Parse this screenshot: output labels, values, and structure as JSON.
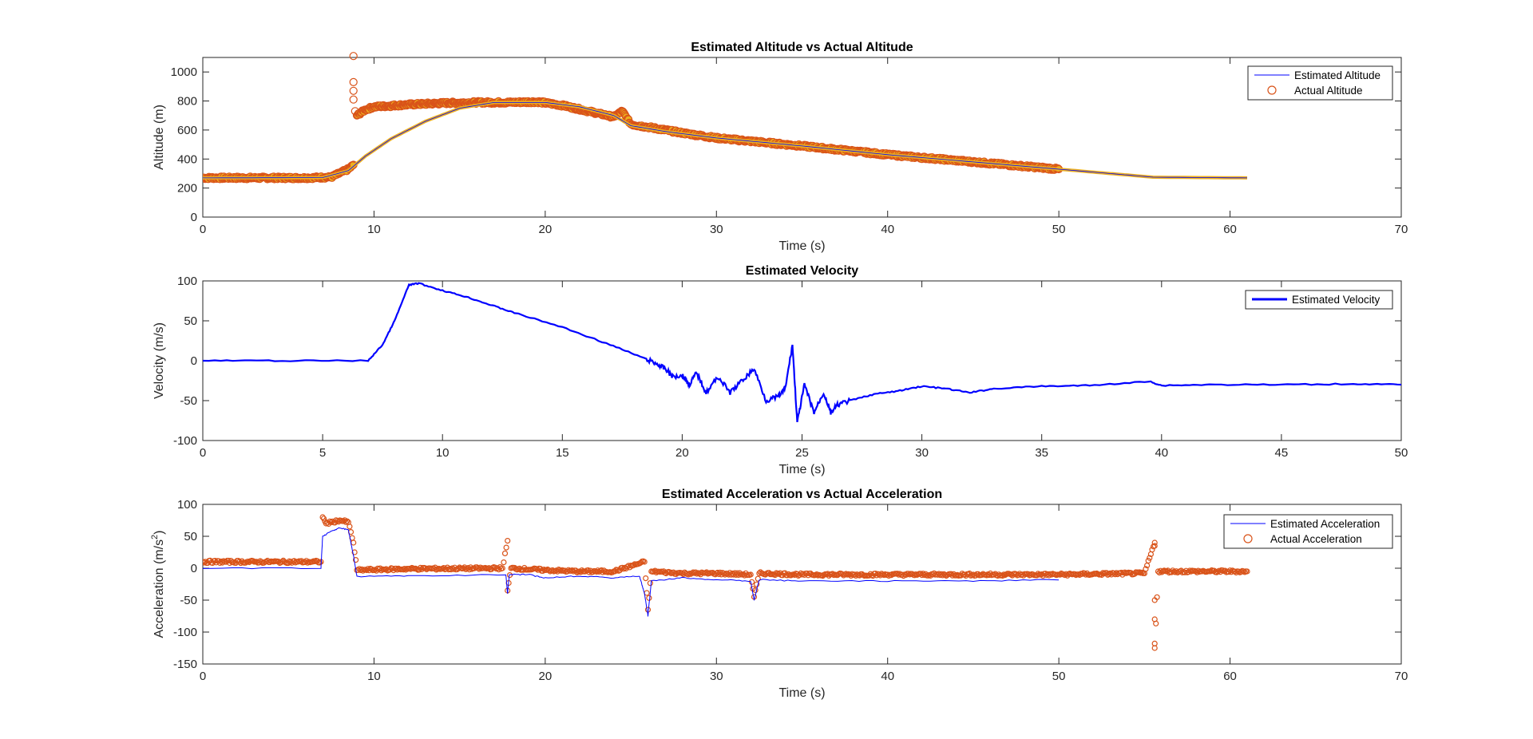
{
  "chart_data": [
    {
      "type": "line",
      "title": "Estimated Altitude vs Actual Altitude",
      "xlabel": "Time (s)",
      "ylabel": "Altitude (m)",
      "xlim": [
        0,
        70
      ],
      "ylim": [
        0,
        1100
      ],
      "xticks": [
        "0",
        "10",
        "20",
        "30",
        "40",
        "50",
        "60",
        "70"
      ],
      "yticks": [
        "0",
        "200",
        "400",
        "600",
        "800",
        "1000"
      ],
      "grid": false,
      "legend_position": "top-right",
      "series": [
        {
          "name": "Estimated Altitude",
          "style": "line",
          "color": "#0000ff",
          "points": [
            [
              0,
              270
            ],
            [
              7,
              272
            ],
            [
              8.5,
              320
            ],
            [
              9.5,
              420
            ],
            [
              11,
              540
            ],
            [
              13,
              660
            ],
            [
              15,
              750
            ],
            [
              17,
              790
            ],
            [
              20,
              790
            ],
            [
              22,
              760
            ],
            [
              24,
              700
            ],
            [
              25,
              630
            ],
            [
              27,
              590
            ],
            [
              30,
              545
            ],
            [
              35,
              490
            ],
            [
              40,
              430
            ],
            [
              45,
              380
            ],
            [
              50,
              330
            ],
            [
              53,
              300
            ],
            [
              55.5,
              275
            ],
            [
              61,
              270
            ]
          ]
        },
        {
          "name": "Actual Altitude",
          "style": "markers",
          "color": "#d95319",
          "points": [
            [
              0,
              270
            ],
            [
              3,
              270
            ],
            [
              6,
              270
            ],
            [
              7.5,
              275
            ],
            [
              8.5,
              330
            ],
            [
              8.8,
              360
            ],
            [
              8.8,
              1110
            ],
            [
              8.8,
              930
            ],
            [
              8.8,
              870
            ],
            [
              8.8,
              810
            ],
            [
              8.9,
              730
            ],
            [
              9,
              700
            ],
            [
              9.5,
              740
            ],
            [
              10,
              760
            ],
            [
              12,
              775
            ],
            [
              14,
              785
            ],
            [
              16,
              790
            ],
            [
              18,
              790
            ],
            [
              19.5,
              795
            ],
            [
              21,
              770
            ],
            [
              22.5,
              730
            ],
            [
              24,
              690
            ],
            [
              24.5,
              730
            ],
            [
              25,
              640
            ],
            [
              26,
              620
            ],
            [
              28,
              580
            ],
            [
              30,
              545
            ],
            [
              35,
              490
            ],
            [
              40,
              430
            ],
            [
              45,
              380
            ],
            [
              50,
              330
            ]
          ]
        }
      ]
    },
    {
      "type": "line",
      "title": "Estimated Velocity",
      "xlabel": "Time (s)",
      "ylabel": "Velocity (m/s)",
      "xlim": [
        0,
        50
      ],
      "ylim": [
        -100,
        100
      ],
      "xticks": [
        "0",
        "5",
        "10",
        "15",
        "20",
        "25",
        "30",
        "35",
        "40",
        "45",
        "50"
      ],
      "yticks": [
        "-100",
        "-50",
        "0",
        "50",
        "100"
      ],
      "grid": false,
      "legend_position": "top-right",
      "series": [
        {
          "name": "Estimated Velocity",
          "style": "line",
          "color": "#0000ff",
          "points": [
            [
              0,
              0
            ],
            [
              3,
              0
            ],
            [
              6.9,
              0
            ],
            [
              7.5,
              20
            ],
            [
              8,
              50
            ],
            [
              8.6,
              95
            ],
            [
              9,
              97
            ],
            [
              10,
              88
            ],
            [
              11,
              80
            ],
            [
              12,
              70
            ],
            [
              13,
              60
            ],
            [
              15,
              42
            ],
            [
              17,
              20
            ],
            [
              18.5,
              2
            ],
            [
              19,
              -5
            ],
            [
              19.3,
              -10
            ],
            [
              19.6,
              -20
            ],
            [
              20,
              -18
            ],
            [
              20.3,
              -30
            ],
            [
              20.6,
              -15
            ],
            [
              21,
              -40
            ],
            [
              21.5,
              -20
            ],
            [
              22,
              -40
            ],
            [
              22.5,
              -25
            ],
            [
              23,
              -10
            ],
            [
              23.5,
              -50
            ],
            [
              24,
              -45
            ],
            [
              24.3,
              -35
            ],
            [
              24.6,
              20
            ],
            [
              24.8,
              -78
            ],
            [
              25.1,
              -30
            ],
            [
              25.5,
              -65
            ],
            [
              25.9,
              -40
            ],
            [
              26.2,
              -65
            ],
            [
              26.5,
              -55
            ],
            [
              27,
              -50
            ],
            [
              28,
              -42
            ],
            [
              29,
              -38
            ],
            [
              30,
              -32
            ],
            [
              31,
              -35
            ],
            [
              32,
              -40
            ],
            [
              33,
              -35
            ],
            [
              35,
              -32
            ],
            [
              37,
              -31
            ],
            [
              39.5,
              -26
            ],
            [
              40,
              -31
            ],
            [
              42,
              -30
            ],
            [
              45,
              -30
            ],
            [
              48,
              -29
            ],
            [
              50,
              -30
            ]
          ]
        }
      ]
    },
    {
      "type": "line",
      "title": "Estimated Acceleration vs Actual Acceleration",
      "xlabel": "Time (s)",
      "ylabel": "Acceleration (m/s",
      "ylabel_superscript": "2",
      "ylabel_suffix": ")",
      "xlim": [
        0,
        70
      ],
      "ylim": [
        -150,
        100
      ],
      "xticks": [
        "0",
        "10",
        "20",
        "30",
        "40",
        "50",
        "60",
        "70"
      ],
      "yticks": [
        "-150",
        "-100",
        "-50",
        "0",
        "50",
        "100"
      ],
      "grid": false,
      "legend_position": "top-right",
      "series": [
        {
          "name": "Estimated Acceleration",
          "style": "line",
          "color": "#0000ff",
          "points": [
            [
              0,
              0
            ],
            [
              6.9,
              0
            ],
            [
              7,
              50
            ],
            [
              7.5,
              58
            ],
            [
              8,
              63
            ],
            [
              8.5,
              60
            ],
            [
              8.8,
              20
            ],
            [
              9,
              -13
            ],
            [
              12,
              -12
            ],
            [
              17.7,
              -10
            ],
            [
              17.8,
              -40
            ],
            [
              17.9,
              -10
            ],
            [
              19,
              -10
            ],
            [
              20,
              -15
            ],
            [
              22,
              -12
            ],
            [
              24,
              -15
            ],
            [
              25.5,
              -12
            ],
            [
              25.8,
              -40
            ],
            [
              26,
              -75
            ],
            [
              26.2,
              -20
            ],
            [
              28,
              -15
            ],
            [
              30,
              -18
            ],
            [
              32,
              -20
            ],
            [
              32.2,
              -50
            ],
            [
              32.5,
              -18
            ],
            [
              35,
              -20
            ],
            [
              40,
              -20
            ],
            [
              45,
              -20
            ],
            [
              50,
              -18
            ]
          ]
        },
        {
          "name": "Actual Acceleration",
          "style": "markers",
          "color": "#d95319",
          "points": [
            [
              0,
              10
            ],
            [
              3,
              10
            ],
            [
              6.9,
              10
            ],
            [
              7,
              80
            ],
            [
              7.2,
              70
            ],
            [
              7.5,
              72
            ],
            [
              8,
              75
            ],
            [
              8.5,
              72
            ],
            [
              8.8,
              40
            ],
            [
              9,
              -3
            ],
            [
              12,
              -1
            ],
            [
              17.5,
              0
            ],
            [
              17.8,
              43
            ],
            [
              17.8,
              -35
            ],
            [
              18,
              0
            ],
            [
              20,
              -3
            ],
            [
              22,
              -5
            ],
            [
              24,
              -5
            ],
            [
              25.8,
              10
            ],
            [
              26,
              -65
            ],
            [
              26.2,
              -5
            ],
            [
              28,
              -8
            ],
            [
              30,
              -8
            ],
            [
              32,
              -10
            ],
            [
              32.2,
              -45
            ],
            [
              32.5,
              -8
            ],
            [
              35,
              -10
            ],
            [
              40,
              -10
            ],
            [
              45,
              -10
            ],
            [
              50,
              -10
            ],
            [
              55,
              -8
            ],
            [
              55.6,
              40
            ],
            [
              55.6,
              35
            ],
            [
              55.6,
              -50
            ],
            [
              55.6,
              -80
            ],
            [
              55.6,
              -118
            ],
            [
              55.6,
              -125
            ],
            [
              55.8,
              -5
            ],
            [
              58,
              -5
            ],
            [
              61,
              -5
            ]
          ]
        }
      ]
    }
  ]
}
